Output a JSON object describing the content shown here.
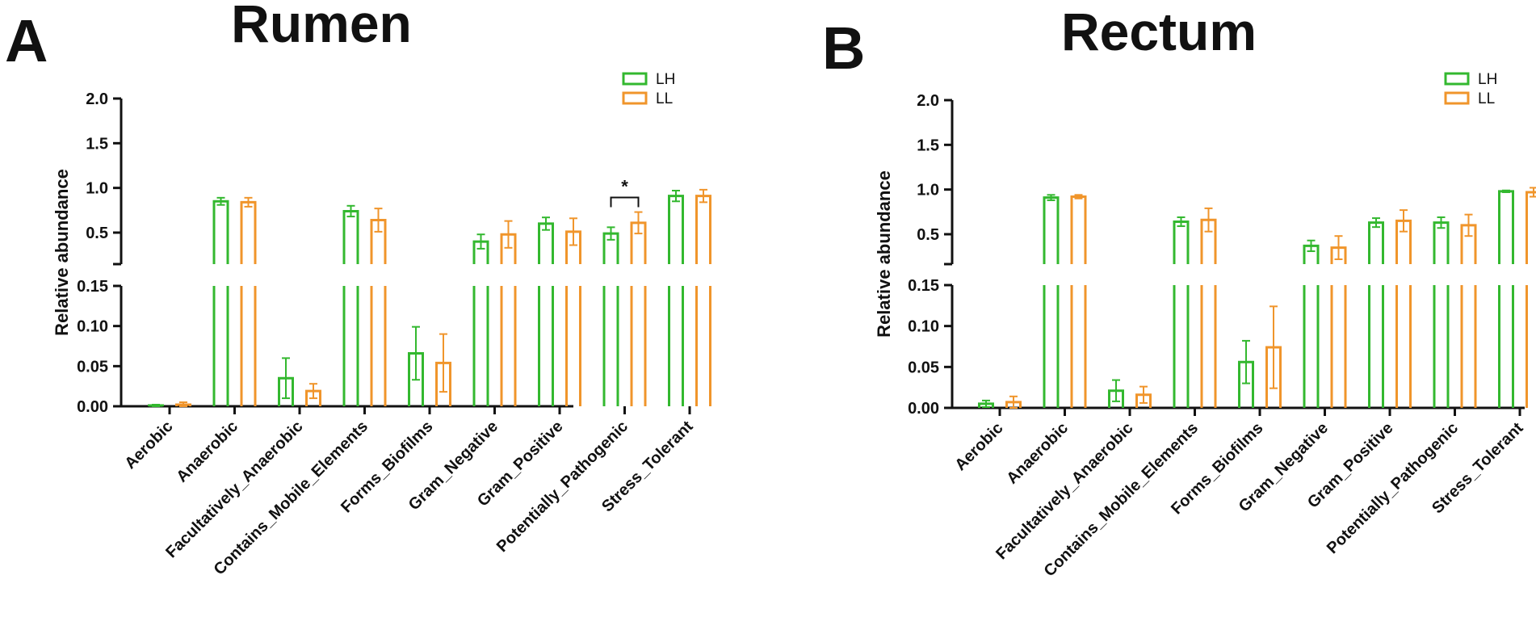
{
  "chart_data": [
    {
      "panel": "A",
      "type": "bar",
      "title": "Rumen",
      "ylabel": "Relative abundance",
      "xlabel": "",
      "y_axis": {
        "broken": true,
        "lower_range": [
          0,
          0.15
        ],
        "lower_ticks": [
          "0.00",
          "0.05",
          "0.10",
          "0.15"
        ],
        "upper_range": [
          0.3,
          2.0
        ],
        "upper_ticks": [
          "0.5",
          "1.0",
          "1.5",
          "2.0"
        ]
      },
      "categories": [
        "Aerobic",
        "Anaerobic",
        "Facultatively_Anaerobic",
        "Contains_Mobile_Elements",
        "Forms_Biofilms",
        "Gram_Negative",
        "Gram_Positive",
        "Potentially_Pathogenic",
        "Stress_Tolerant"
      ],
      "series": [
        {
          "name": "LH",
          "color": "#33b82f",
          "values": [
            0.001,
            0.85,
            0.035,
            0.74,
            0.066,
            0.4,
            0.6,
            0.49,
            0.91
          ],
          "errors": [
            0.001,
            0.04,
            0.025,
            0.06,
            0.033,
            0.08,
            0.07,
            0.07,
            0.06
          ]
        },
        {
          "name": "LL",
          "color": "#f0952b",
          "values": [
            0.002,
            0.84,
            0.019,
            0.64,
            0.054,
            0.48,
            0.51,
            0.61,
            0.91
          ],
          "errors": [
            0.003,
            0.05,
            0.009,
            0.13,
            0.036,
            0.15,
            0.15,
            0.12,
            0.07
          ]
        }
      ],
      "annotations": [
        {
          "category": "Potentially_Pathogenic",
          "text": "*"
        }
      ],
      "legend": "top-right"
    },
    {
      "panel": "B",
      "type": "bar",
      "title": "Rectum",
      "ylabel": "Relative abundance",
      "xlabel": "",
      "y_axis": {
        "broken": true,
        "lower_range": [
          0,
          0.15
        ],
        "lower_ticks": [
          "0.00",
          "0.05",
          "0.10",
          "0.15"
        ],
        "upper_range": [
          0.3,
          2.0
        ],
        "upper_ticks": [
          "0.5",
          "1.0",
          "1.5",
          "2.0"
        ]
      },
      "categories": [
        "Aerobic",
        "Anaerobic",
        "Facultatively_Anaerobic",
        "Contains_Mobile_Elements",
        "Forms_Biofilms",
        "Gram_Negative",
        "Gram_Positive",
        "Potentially_Pathogenic",
        "Stress_Tolerant"
      ],
      "series": [
        {
          "name": "LH",
          "color": "#33b82f",
          "values": [
            0.005,
            0.91,
            0.021,
            0.64,
            0.056,
            0.37,
            0.63,
            0.63,
            0.98
          ],
          "errors": [
            0.004,
            0.03,
            0.013,
            0.05,
            0.026,
            0.06,
            0.05,
            0.06,
            0.01
          ]
        },
        {
          "name": "LL",
          "color": "#f0952b",
          "values": [
            0.007,
            0.92,
            0.016,
            0.66,
            0.074,
            0.35,
            0.65,
            0.6,
            0.97
          ],
          "errors": [
            0.007,
            0.02,
            0.01,
            0.13,
            0.05,
            0.13,
            0.12,
            0.12,
            0.05
          ]
        }
      ],
      "annotations": [],
      "legend": "top-right"
    }
  ]
}
